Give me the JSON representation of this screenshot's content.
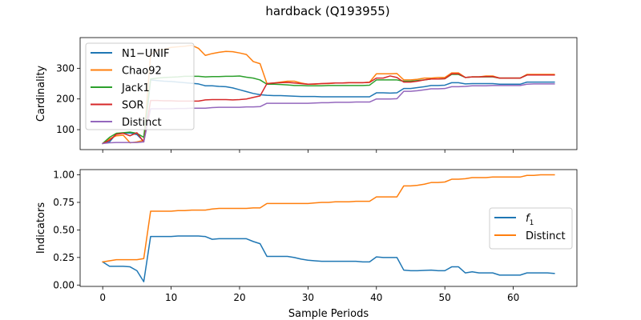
{
  "figure": {
    "title": "hardback (Q193955)"
  },
  "chart_data": [
    {
      "type": "line",
      "title": "hardback (Q193955)",
      "xlabel": "",
      "ylabel": "Cardinality",
      "xlim": [
        -3.3,
        69.3
      ],
      "ylim": [
        35,
        400
      ],
      "xticks": [
        0,
        10,
        20,
        30,
        40,
        50,
        60
      ],
      "xtick_labels": [],
      "yticks": [
        100,
        200,
        300
      ],
      "ytick_labels": [
        "100",
        "200",
        "300"
      ],
      "grid": false,
      "legend": "top-left",
      "series": [
        {
          "name": "N1−UNIF",
          "color": "#1f77b4",
          "x": [
            0,
            1,
            2,
            3,
            4,
            5,
            6,
            7,
            8,
            9,
            10,
            11,
            12,
            13,
            14,
            15,
            16,
            17,
            18,
            19,
            20,
            21,
            22,
            23,
            24,
            25,
            26,
            27,
            28,
            29,
            30,
            31,
            32,
            33,
            34,
            35,
            36,
            37,
            38,
            39,
            40,
            41,
            42,
            43,
            44,
            45,
            46,
            47,
            48,
            49,
            50,
            51,
            52,
            53,
            54,
            55,
            56,
            57,
            58,
            59,
            60,
            61,
            62,
            63,
            64,
            65,
            66
          ],
          "y": [
            55,
            60,
            87,
            88,
            89,
            84,
            62,
            262,
            260,
            258,
            257,
            255,
            253,
            251,
            249,
            243,
            243,
            241,
            240,
            236,
            230,
            224,
            218,
            214,
            212,
            211,
            211,
            210,
            209,
            208,
            208,
            208,
            207,
            207,
            207,
            207,
            207,
            207,
            207,
            207,
            220,
            220,
            219,
            220,
            234,
            234,
            237,
            240,
            244,
            244,
            245,
            253,
            253,
            249,
            250,
            250,
            250,
            250,
            248,
            248,
            248,
            248,
            255,
            255,
            255,
            255,
            255
          ]
        },
        {
          "name": "Chao92",
          "color": "#ff7f0e",
          "x": [
            0,
            1,
            2,
            3,
            4,
            5,
            6,
            7,
            8,
            9,
            10,
            11,
            12,
            13,
            14,
            15,
            16,
            17,
            18,
            19,
            20,
            21,
            22,
            23,
            24,
            25,
            26,
            27,
            28,
            29,
            30,
            31,
            32,
            33,
            34,
            35,
            36,
            37,
            38,
            39,
            40,
            41,
            42,
            43,
            44,
            45,
            46,
            47,
            48,
            49,
            50,
            51,
            52,
            53,
            54,
            55,
            56,
            57,
            58,
            59,
            60,
            61,
            62,
            63,
            64,
            65,
            66
          ],
          "y": [
            55,
            70,
            80,
            82,
            57,
            60,
            65,
            345,
            358,
            362,
            368,
            370,
            372,
            375,
            365,
            342,
            348,
            352,
            355,
            354,
            350,
            345,
            322,
            315,
            250,
            252,
            255,
            258,
            258,
            252,
            248,
            248,
            250,
            250,
            252,
            252,
            253,
            253,
            253,
            255,
            282,
            282,
            282,
            283,
            262,
            262,
            264,
            268,
            268,
            270,
            270,
            285,
            285,
            270,
            272,
            272,
            275,
            275,
            268,
            268,
            268,
            268,
            280,
            280,
            280,
            280,
            280
          ]
        },
        {
          "name": "Jack1",
          "color": "#2ca02c",
          "x": [
            0,
            1,
            2,
            3,
            4,
            5,
            6,
            7,
            8,
            9,
            10,
            11,
            12,
            13,
            14,
            15,
            16,
            17,
            18,
            19,
            20,
            21,
            22,
            23,
            24,
            25,
            26,
            27,
            28,
            29,
            30,
            31,
            32,
            33,
            34,
            35,
            36,
            37,
            38,
            39,
            40,
            41,
            42,
            43,
            44,
            45,
            46,
            47,
            48,
            49,
            50,
            51,
            52,
            53,
            54,
            55,
            56,
            57,
            58,
            59,
            60,
            61,
            62,
            63,
            64,
            65,
            66
          ],
          "y": [
            55,
            75,
            88,
            90,
            92,
            88,
            75,
            265,
            268,
            270,
            271,
            272,
            274,
            274,
            274,
            272,
            273,
            273,
            274,
            274,
            275,
            271,
            268,
            262,
            248,
            248,
            247,
            246,
            244,
            244,
            243,
            243,
            243,
            244,
            244,
            244,
            244,
            244,
            244,
            245,
            262,
            262,
            262,
            262,
            258,
            258,
            260,
            262,
            265,
            265,
            266,
            280,
            280,
            270,
            272,
            272,
            272,
            272,
            268,
            268,
            268,
            268,
            278,
            278,
            278,
            278,
            278
          ]
        },
        {
          "name": "SOR",
          "color": "#d62728",
          "x": [
            0,
            1,
            2,
            3,
            4,
            5,
            6,
            7,
            8,
            9,
            10,
            11,
            12,
            13,
            14,
            15,
            16,
            17,
            18,
            19,
            20,
            21,
            22,
            23,
            24,
            25,
            26,
            27,
            28,
            29,
            30,
            31,
            32,
            33,
            34,
            35,
            36,
            37,
            38,
            39,
            40,
            41,
            42,
            43,
            44,
            45,
            46,
            47,
            48,
            49,
            50,
            51,
            52,
            53,
            54,
            55,
            56,
            57,
            58,
            59,
            60,
            61,
            62,
            63,
            64,
            65,
            66
          ],
          "y": [
            55,
            65,
            85,
            88,
            80,
            90,
            60,
            195,
            195,
            194,
            194,
            193,
            193,
            193,
            193,
            197,
            198,
            198,
            198,
            197,
            198,
            200,
            205,
            210,
            250,
            252,
            253,
            254,
            252,
            250,
            248,
            249,
            250,
            251,
            252,
            252,
            253,
            253,
            253,
            254,
            268,
            268,
            275,
            270,
            255,
            255,
            258,
            262,
            265,
            265,
            266,
            282,
            282,
            270,
            272,
            272,
            273,
            273,
            268,
            268,
            268,
            268,
            278,
            278,
            278,
            278,
            278
          ]
        },
        {
          "name": "Distinct",
          "color": "#9467bd",
          "x": [
            0,
            1,
            2,
            3,
            4,
            5,
            6,
            7,
            8,
            9,
            10,
            11,
            12,
            13,
            14,
            15,
            16,
            17,
            18,
            19,
            20,
            21,
            22,
            23,
            24,
            25,
            26,
            27,
            28,
            29,
            30,
            31,
            32,
            33,
            34,
            35,
            36,
            37,
            38,
            39,
            40,
            41,
            42,
            43,
            44,
            45,
            46,
            47,
            48,
            49,
            50,
            51,
            52,
            53,
            54,
            55,
            56,
            57,
            58,
            59,
            60,
            61,
            62,
            63,
            64,
            65,
            66
          ],
          "y": [
            55,
            57,
            58,
            58,
            58,
            58,
            60,
            168,
            168,
            168,
            168,
            169,
            169,
            170,
            170,
            170,
            172,
            173,
            173,
            173,
            173,
            174,
            174,
            175,
            186,
            186,
            186,
            186,
            186,
            186,
            186,
            187,
            188,
            188,
            189,
            189,
            189,
            190,
            190,
            190,
            200,
            200,
            200,
            201,
            225,
            225,
            227,
            230,
            233,
            233,
            234,
            240,
            240,
            241,
            243,
            243,
            243,
            244,
            244,
            244,
            244,
            244,
            248,
            249,
            249,
            249,
            249
          ]
        }
      ]
    },
    {
      "type": "line",
      "title": "",
      "xlabel": "Sample Periods",
      "ylabel": "Indicators",
      "xlim": [
        -3.3,
        69.3
      ],
      "ylim": [
        -0.0125,
        1.0475
      ],
      "xticks": [
        0,
        10,
        20,
        30,
        40,
        50,
        60
      ],
      "xtick_labels": [
        "0",
        "10",
        "20",
        "30",
        "40",
        "50",
        "60"
      ],
      "yticks": [
        0,
        0.25,
        0.5,
        0.75,
        1.0
      ],
      "ytick_labels": [
        "0.00",
        "0.25",
        "0.50",
        "0.75",
        "1.00"
      ],
      "grid": false,
      "legend": "center-right",
      "series": [
        {
          "name": "f1",
          "name_base": "f",
          "name_sub": "1",
          "color": "#1f77b4",
          "x": [
            0,
            1,
            2,
            3,
            4,
            5,
            6,
            7,
            8,
            9,
            10,
            11,
            12,
            13,
            14,
            15,
            16,
            17,
            18,
            19,
            20,
            21,
            22,
            23,
            24,
            25,
            26,
            27,
            28,
            29,
            30,
            31,
            32,
            33,
            34,
            35,
            36,
            37,
            38,
            39,
            40,
            41,
            42,
            43,
            44,
            45,
            46,
            47,
            48,
            49,
            50,
            51,
            52,
            53,
            54,
            55,
            56,
            57,
            58,
            59,
            60,
            61,
            62,
            63,
            64,
            65,
            66
          ],
          "y": [
            0.21,
            0.17,
            0.17,
            0.17,
            0.165,
            0.13,
            0.03,
            0.44,
            0.44,
            0.44,
            0.44,
            0.445,
            0.445,
            0.445,
            0.445,
            0.44,
            0.415,
            0.42,
            0.42,
            0.42,
            0.42,
            0.42,
            0.395,
            0.375,
            0.26,
            0.26,
            0.26,
            0.26,
            0.25,
            0.235,
            0.225,
            0.22,
            0.215,
            0.215,
            0.215,
            0.215,
            0.215,
            0.215,
            0.21,
            0.21,
            0.255,
            0.25,
            0.25,
            0.25,
            0.135,
            0.13,
            0.13,
            0.133,
            0.135,
            0.13,
            0.13,
            0.165,
            0.165,
            0.11,
            0.12,
            0.11,
            0.11,
            0.11,
            0.09,
            0.09,
            0.09,
            0.09,
            0.11,
            0.11,
            0.11,
            0.11,
            0.105
          ]
        },
        {
          "name": "Distinct",
          "color": "#ff7f0e",
          "x": [
            0,
            1,
            2,
            3,
            4,
            5,
            6,
            7,
            8,
            9,
            10,
            11,
            12,
            13,
            14,
            15,
            16,
            17,
            18,
            19,
            20,
            21,
            22,
            23,
            24,
            25,
            26,
            27,
            28,
            29,
            30,
            31,
            32,
            33,
            34,
            35,
            36,
            37,
            38,
            39,
            40,
            41,
            42,
            43,
            44,
            45,
            46,
            47,
            48,
            49,
            50,
            51,
            52,
            53,
            54,
            55,
            56,
            57,
            58,
            59,
            60,
            61,
            62,
            63,
            64,
            65,
            66
          ],
          "y": [
            0.21,
            0.22,
            0.23,
            0.23,
            0.23,
            0.23,
            0.24,
            0.67,
            0.67,
            0.67,
            0.67,
            0.675,
            0.675,
            0.68,
            0.68,
            0.68,
            0.69,
            0.695,
            0.695,
            0.695,
            0.695,
            0.695,
            0.7,
            0.7,
            0.74,
            0.74,
            0.74,
            0.74,
            0.74,
            0.74,
            0.74,
            0.745,
            0.75,
            0.75,
            0.755,
            0.755,
            0.755,
            0.76,
            0.76,
            0.76,
            0.8,
            0.8,
            0.8,
            0.8,
            0.9,
            0.9,
            0.905,
            0.915,
            0.93,
            0.93,
            0.935,
            0.96,
            0.96,
            0.965,
            0.975,
            0.975,
            0.975,
            0.98,
            0.98,
            0.98,
            0.98,
            0.98,
            0.995,
            0.995,
            1.0,
            1.0,
            1.0
          ]
        }
      ]
    }
  ]
}
